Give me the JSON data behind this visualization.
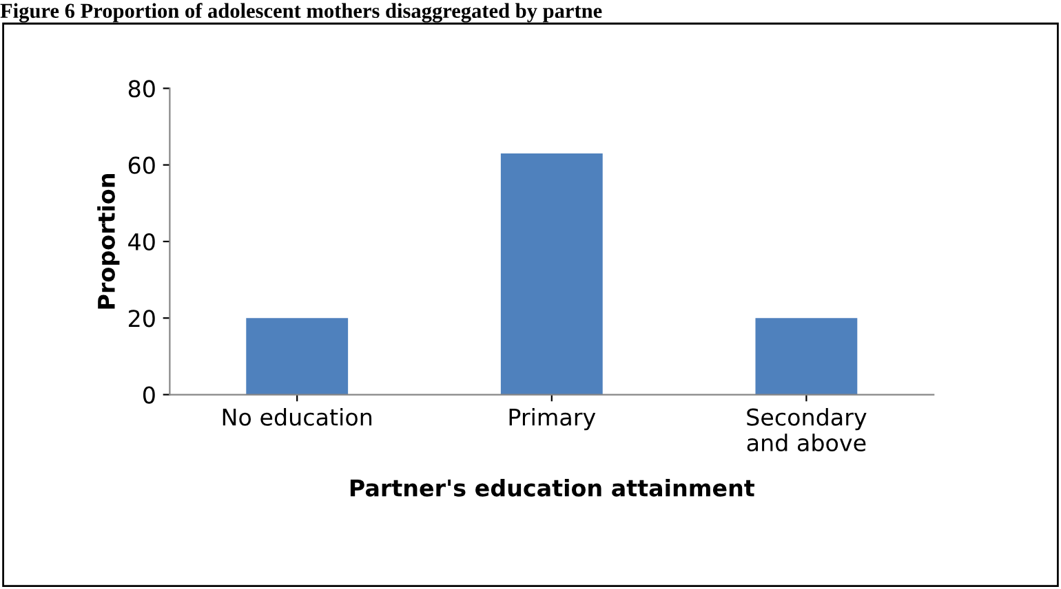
{
  "chart_data": {
    "type": "bar",
    "title": "Figure 6 Proportion of adolescent mothers disaggregated by partne",
    "xlabel": "Partner's education attainment",
    "ylabel": "Proportion",
    "categories": [
      "No education",
      "Primary",
      "Secondary\nand above"
    ],
    "values": [
      20,
      63,
      20
    ],
    "color": "#4f81bd",
    "ylim": [
      0,
      80
    ],
    "yticks": [
      0,
      20,
      40,
      60,
      80
    ],
    "grid": false
  }
}
